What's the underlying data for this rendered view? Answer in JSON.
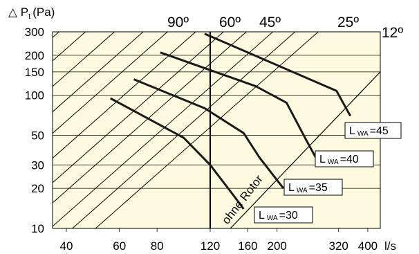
{
  "chart_data": {
    "type": "line",
    "ylabel_main": "△ P",
    "ylabel_sub": "t",
    "ylabel_unit": "(Pa)",
    "xunit": "l/s",
    "x_scale": "log",
    "y_scale": "log",
    "xlim": [
      36,
      440
    ],
    "ylim": [
      10,
      300
    ],
    "x_ticks": [
      "40",
      "60",
      "80",
      "120",
      "160",
      "200",
      "320",
      "400"
    ],
    "x_tick_values": [
      40,
      60,
      80,
      120,
      160,
      200,
      320,
      400
    ],
    "y_ticks": [
      "10",
      "20",
      "30",
      "50",
      "100",
      "150",
      "200",
      "300"
    ],
    "y_tick_values": [
      10,
      20,
      30,
      50,
      100,
      150,
      200,
      300
    ],
    "vertical_marker_x": 120,
    "blade_angles": [
      "90º",
      "60º",
      "45º",
      "25º",
      "12º"
    ],
    "no_rotor_label": "ohne Rotor",
    "series": [
      {
        "name": "L WA =30",
        "label_main": "L",
        "label_sub": "WA",
        "label_value": "=30",
        "points": [
          [
            56,
            95
          ],
          [
            98,
            48
          ],
          [
            120,
            30
          ],
          [
            140,
            19
          ],
          [
            155,
            14
          ]
        ]
      },
      {
        "name": "L WA =35",
        "label_main": "L",
        "label_sub": "WA",
        "label_value": "=35",
        "points": [
          [
            67,
            132
          ],
          [
            115,
            80
          ],
          [
            155,
            52
          ],
          [
            175,
            34
          ],
          [
            210,
            20
          ]
        ]
      },
      {
        "name": "L WA =40",
        "label_main": "L",
        "label_sub": "WA",
        "label_value": "=40",
        "points": [
          [
            82,
            210
          ],
          [
            170,
            117
          ],
          [
            215,
            88
          ],
          [
            250,
            46
          ],
          [
            275,
            31
          ]
        ]
      },
      {
        "name": "L WA =45",
        "label_main": "L",
        "label_sub": "WA",
        "label_value": "=45",
        "points": [
          [
            115,
            290
          ],
          [
            315,
            108
          ],
          [
            350,
            70
          ]
        ]
      }
    ],
    "grid": true
  }
}
